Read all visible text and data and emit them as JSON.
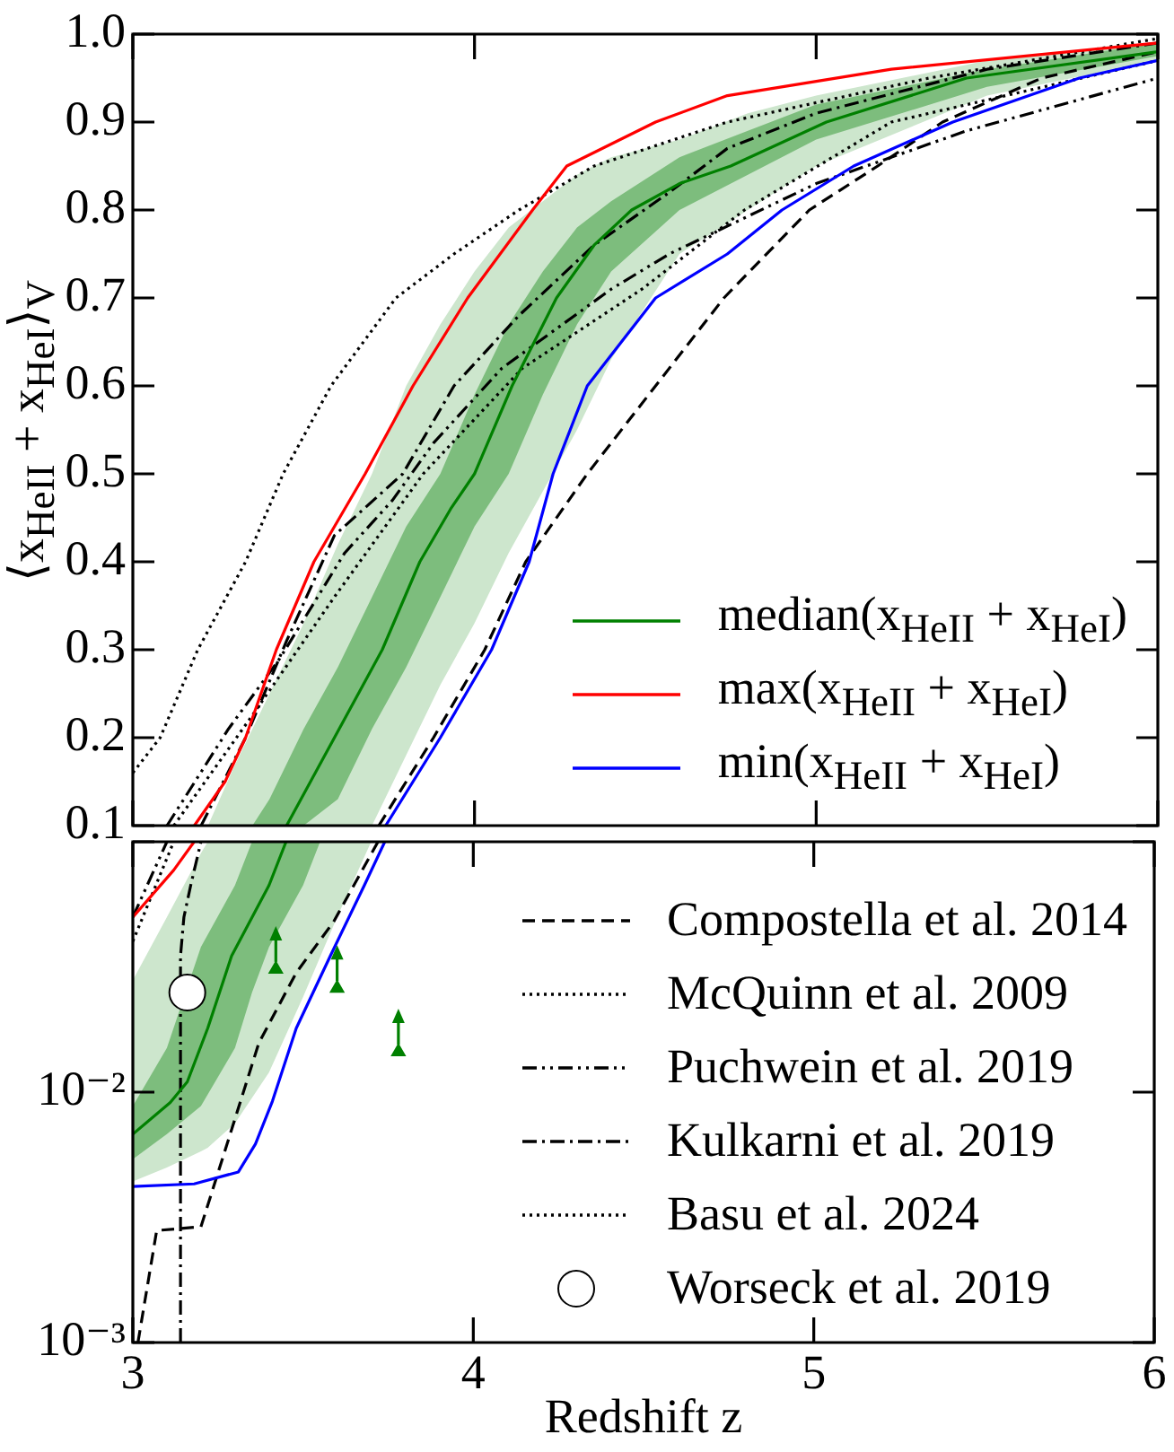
{
  "chart_data": [
    {
      "type": "line",
      "ylabel": "⟨x$_{HeII}$ + x$_{HeI}$⟩$_{V}$",
      "xlim": [
        3,
        6
      ],
      "xticks": [
        3,
        4,
        5,
        6
      ],
      "ylim": [
        0.1,
        1
      ],
      "yticks": [
        0.1,
        0.2,
        0.3,
        0.4,
        0.5,
        0.6,
        0.7,
        0.8,
        0.9,
        {
          "value": 1,
          "label": "1.0"
        }
      ],
      "tick_labels": "y",
      "grid": false,
      "legend": "bottom right",
      "series": [
        {
          "type": "area",
          "color": "#cde6cd",
          "x": [
            3.22,
            3.3,
            3.4,
            3.5,
            3.6,
            3.7,
            3.8,
            3.9,
            4.0,
            4.1,
            4.2,
            4.3,
            4.4,
            4.6,
            4.8,
            5.0,
            5.5,
            6.0
          ],
          "values": [
            null,
            null,
            null,
            null,
            null,
            null,
            null,
            null,
            null,
            null,
            null,
            null,
            null,
            null,
            null,
            null,
            null,
            null
          ],
          "lower": [
            0.1,
            0.1,
            0.1,
            0.1,
            0.1,
            0.1,
            0.18,
            0.26,
            0.33,
            0.41,
            0.48,
            0.55,
            0.63,
            0.75,
            0.8,
            0.85,
            0.93,
            0.97
          ],
          "upper": [
            0.1,
            0.17,
            0.25,
            0.33,
            0.42,
            0.5,
            0.6,
            0.67,
            0.73,
            0.78,
            0.81,
            0.84,
            0.86,
            0.88,
            0.91,
            0.93,
            0.97,
            0.99
          ]
        },
        {
          "type": "area",
          "color": "#7dbd7d",
          "x": [
            3.35,
            3.4,
            3.5,
            3.6,
            3.7,
            3.8,
            3.9,
            4.0,
            4.1,
            4.2,
            4.3,
            4.4,
            4.6,
            4.8,
            5.0,
            5.5,
            6.0
          ],
          "values": [
            null,
            null,
            null,
            null,
            null,
            null,
            null,
            null,
            null,
            null,
            null,
            null,
            null,
            null,
            null,
            null,
            null
          ],
          "lower": [
            0.1,
            0.1,
            0.1,
            0.13,
            0.21,
            0.28,
            0.36,
            0.44,
            0.5,
            0.59,
            0.67,
            0.73,
            0.8,
            0.84,
            0.88,
            0.94,
            0.975
          ],
          "upper": [
            0.1,
            0.13,
            0.21,
            0.28,
            0.36,
            0.44,
            0.5,
            0.59,
            0.67,
            0.73,
            0.78,
            0.81,
            0.86,
            0.89,
            0.92,
            0.96,
            0.99
          ]
        },
        {
          "color": "#000000",
          "line_style": "dashed",
          "x": [
            3.72,
            3.88,
            4.03,
            4.15,
            4.33,
            4.53,
            4.73,
            4.98,
            5.18,
            5.37,
            5.66,
            6.0
          ],
          "values": [
            0.1,
            0.2,
            0.3,
            0.4,
            0.5,
            0.6,
            0.7,
            0.8,
            0.85,
            0.9,
            0.95,
            0.98
          ]
        },
        {
          "color": "#000000",
          "line_style": "dotted",
          "x": [
            3.12,
            3.34,
            3.59,
            3.85,
            4.14,
            4.49,
            4.79,
            5.22,
            6.0
          ],
          "values": [
            0.1,
            0.22,
            0.36,
            0.5,
            0.62,
            0.71,
            0.8,
            0.9,
            0.97
          ]
        },
        {
          "color": "#000000",
          "line_style": "dashdotdot",
          "x": [
            3.1,
            3.28,
            3.43,
            3.62,
            3.76,
            3.88,
            4.08,
            4.4,
            4.57,
            5.0,
            5.44,
            6.0
          ],
          "values": [
            0.1,
            0.21,
            0.29,
            0.41,
            0.47,
            0.535,
            0.62,
            0.71,
            0.75,
            0.83,
            0.89,
            0.95
          ]
        },
        {
          "color": "#000000",
          "line_style": "dashdot",
          "x": [
            3.2,
            3.33,
            3.45,
            3.59,
            3.79,
            3.94,
            4.13,
            4.35,
            4.57,
            4.74,
            5.0,
            5.5,
            6.0
          ],
          "values": [
            0.1,
            0.2,
            0.31,
            0.43,
            0.5,
            0.6,
            0.68,
            0.76,
            0.82,
            0.87,
            0.91,
            0.96,
            0.99
          ]
        },
        {
          "color": "#000000",
          "line_style": "dotted",
          "x": [
            3.0,
            3.08,
            3.19,
            3.33,
            3.44,
            3.58,
            3.77,
            3.94,
            4.13,
            4.35,
            4.74,
            5.33,
            6.0
          ],
          "values": [
            0.16,
            0.2,
            0.3,
            0.4,
            0.5,
            0.6,
            0.7,
            0.75,
            0.8,
            0.85,
            0.9,
            0.95,
            0.995
          ]
        },
        {
          "name": "median(x$_{HeII}$ + x$_{HeI}$)",
          "color": "#008000",
          "x": [
            3.45,
            3.52,
            3.59,
            3.73,
            3.84,
            3.93,
            4.0,
            4.11,
            4.24,
            4.35,
            4.46,
            4.6,
            4.75,
            5.03,
            5.44,
            6.0
          ],
          "values": [
            0.1,
            0.15,
            0.2,
            0.3,
            0.4,
            0.46,
            0.5,
            0.6,
            0.7,
            0.76,
            0.8,
            0.83,
            0.85,
            0.9,
            0.95,
            0.98
          ]
        },
        {
          "name": "max(x$_{HeII}$ + x$_{HeI}$)",
          "color": "#ff0000",
          "x": [
            3.18,
            3.27,
            3.33,
            3.42,
            3.53,
            3.68,
            3.82,
            3.98,
            4.17,
            4.27,
            4.53,
            4.74,
            5.22,
            6.0
          ],
          "values": [
            0.1,
            0.15,
            0.2,
            0.3,
            0.4,
            0.5,
            0.6,
            0.7,
            0.8,
            0.85,
            0.9,
            0.93,
            0.96,
            0.99
          ]
        },
        {
          "name": "min(x$_{HeII}$ + x$_{HeI}$)",
          "color": "#0000ff",
          "x": [
            3.74,
            3.9,
            4.05,
            4.16,
            4.23,
            4.33,
            4.53,
            4.74,
            4.9,
            5.11,
            5.4,
            5.77,
            6.0
          ],
          "values": [
            0.1,
            0.2,
            0.3,
            0.4,
            0.5,
            0.6,
            0.7,
            0.75,
            0.8,
            0.85,
            0.9,
            0.95,
            0.97
          ]
        }
      ]
    },
    {
      "type": "line",
      "xlabel": "Redshift z",
      "xlim": [
        3,
        6
      ],
      "xticks": [
        3,
        4,
        5,
        6
      ],
      "ylim": [
        0.001,
        0.1
      ],
      "yticks": [
        {
          "value": 0.001,
          "label": "10⁻³"
        },
        {
          "value": 0.01,
          "label": "10⁻²"
        },
        {
          "value": 0.1,
          "label": null
        }
      ],
      "log": true,
      "grid": false,
      "legend": "right",
      "series": [
        {
          "type": "area",
          "color": "#cde6cd",
          "x": [
            3.0,
            3.1,
            3.2,
            3.22,
            3.3,
            3.4,
            3.5,
            3.6,
            3.7
          ],
          "values": [
            null,
            null,
            null,
            null,
            null,
            null,
            null,
            null,
            null
          ],
          "lower": [
            0.0044,
            0.005,
            0.0058,
            0.006,
            0.0075,
            0.012,
            0.024,
            0.05,
            0.1
          ],
          "upper": [
            0.028,
            0.05,
            0.09,
            0.1,
            0.1,
            0.1,
            0.1,
            0.1,
            0.1
          ]
        },
        {
          "type": "area",
          "color": "#7dbd7d",
          "x": [
            3.0,
            3.1,
            3.2,
            3.3,
            3.35,
            3.4,
            3.5,
            3.55
          ],
          "values": [
            null,
            null,
            null,
            null,
            null,
            null,
            null,
            null
          ],
          "lower": [
            0.0054,
            0.0068,
            0.0088,
            0.015,
            0.025,
            0.038,
            0.067,
            0.1
          ],
          "upper": [
            0.0088,
            0.015,
            0.038,
            0.067,
            0.1,
            0.1,
            0.1,
            0.1
          ]
        },
        {
          "name": "Compostella et al. 2014",
          "color": "#000000",
          "line_style": "dashed",
          "x": [
            3.015,
            3.07,
            3.2,
            3.27,
            3.37,
            3.48,
            3.59,
            3.72
          ],
          "values": [
            0.001,
            0.0028,
            0.0029,
            0.0058,
            0.0157,
            0.03,
            0.048,
            0.1
          ]
        },
        {
          "name": "McQuinn et al. 2009",
          "color": "#000000",
          "line_style": "dotted",
          "x": [
            3.0,
            3.12
          ],
          "values": [
            0.04,
            0.1
          ]
        },
        {
          "name": "Puchwein et al. 2019",
          "color": "#000000",
          "line_style": "dashdotdot",
          "x": [
            3.0,
            3.1
          ],
          "values": [
            0.05,
            0.1
          ]
        },
        {
          "name": "Kulkarni et al. 2019",
          "color": "#000000",
          "line_style": "dashdot",
          "x": [
            3.14,
            3.14,
            3.15,
            3.17,
            3.2
          ],
          "values": [
            0.001,
            0.035,
            0.05,
            0.067,
            0.1
          ]
        },
        {
          "name": "Basu et al. 2024",
          "color": "#000000",
          "line_style": "dotted"
        },
        {
          "color": "#008000",
          "x": [
            3.0,
            3.11,
            3.16,
            3.22,
            3.29,
            3.4,
            3.45
          ],
          "values": [
            0.0068,
            0.0091,
            0.011,
            0.018,
            0.035,
            0.067,
            0.1
          ]
        },
        {
          "color": "#ff0000",
          "x": [
            3.0,
            3.12,
            3.18
          ],
          "values": [
            0.05,
            0.077,
            0.1
          ]
        },
        {
          "color": "#0000ff",
          "x": [
            3.0,
            3.18,
            3.31,
            3.36,
            3.41,
            3.48,
            3.58,
            3.68,
            3.74
          ],
          "values": [
            0.0042,
            0.0043,
            0.0048,
            0.0062,
            0.0092,
            0.018,
            0.035,
            0.067,
            0.1
          ]
        },
        {
          "type": "scatter",
          "color": "#008000",
          "marker": "triangle",
          "x": [
            3.42,
            3.6,
            3.78
          ],
          "values": [
            0.031,
            0.026,
            0.0145
          ]
        },
        {
          "type": "scatter",
          "name": "Worseck et al. 2019",
          "color": "#ffffff",
          "marker": "circle",
          "x": [
            3.16
          ],
          "values": [
            0.025
          ]
        }
      ]
    }
  ]
}
